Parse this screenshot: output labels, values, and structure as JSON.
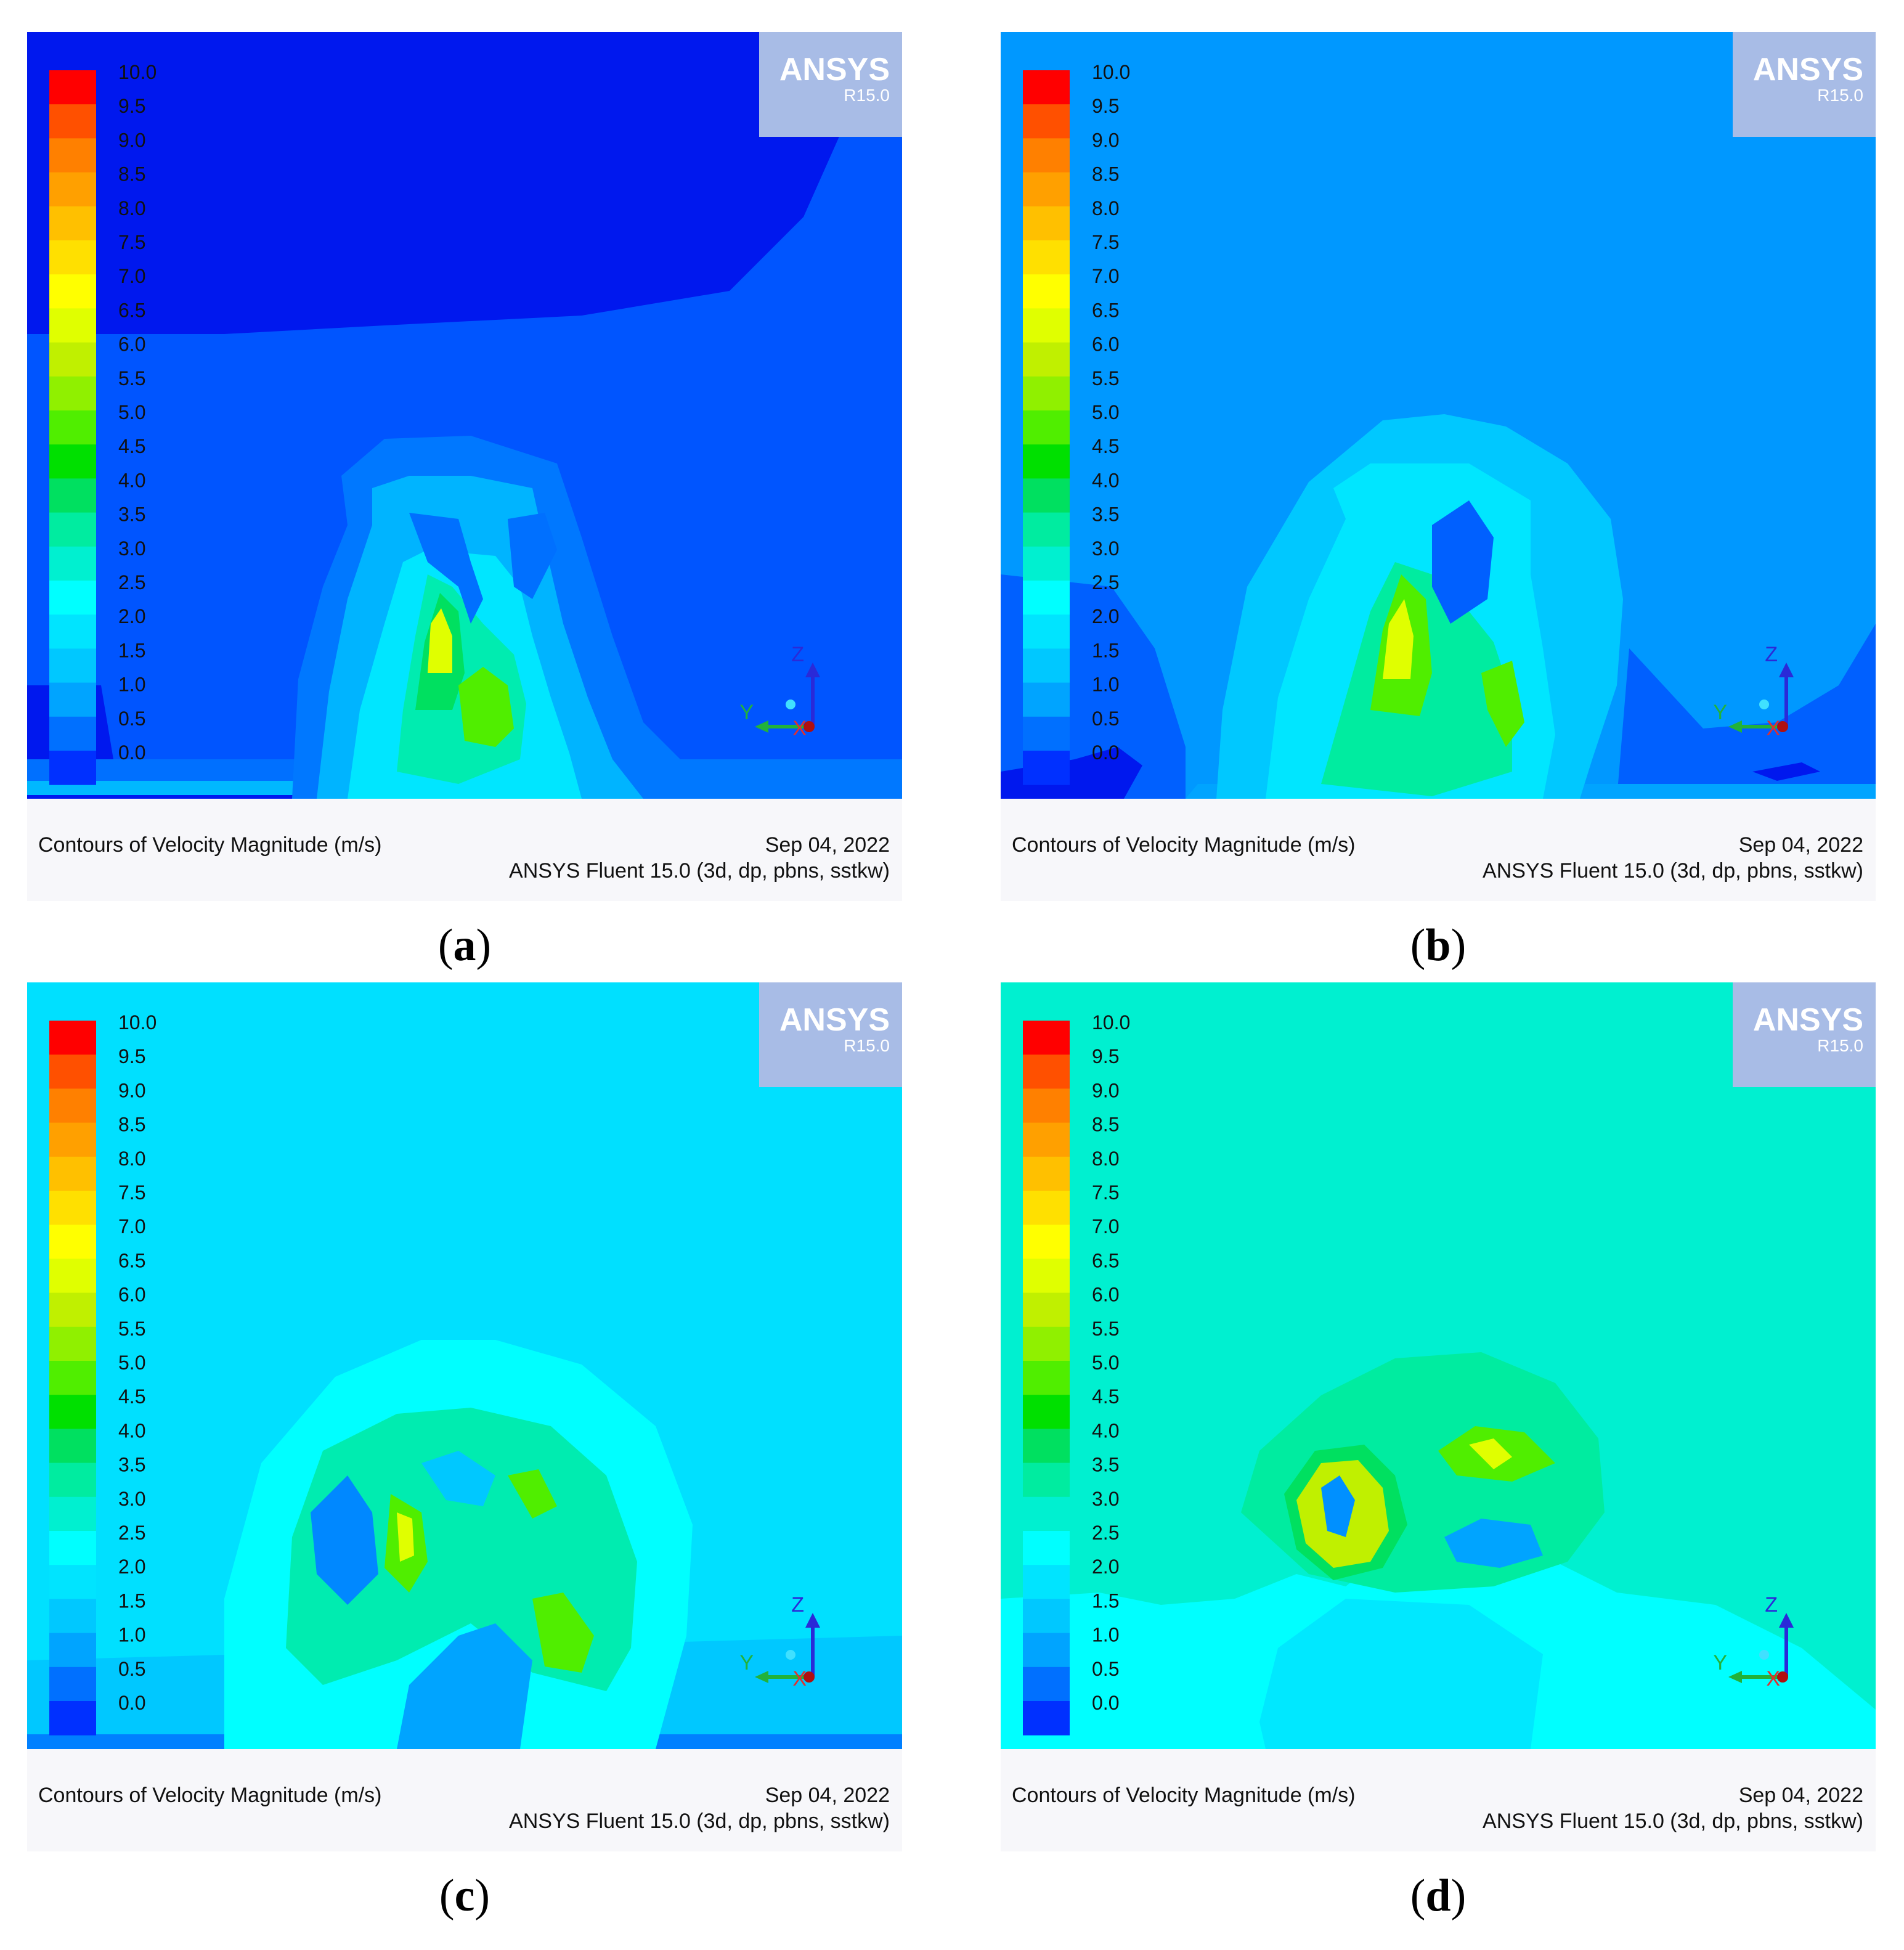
{
  "colorbar": {
    "ticks": [
      "10.0",
      "9.5",
      "9.0",
      "8.5",
      "8.0",
      "7.5",
      "7.0",
      "6.5",
      "6.0",
      "5.5",
      "5.0",
      "4.5",
      "4.0",
      "3.5",
      "3.0",
      "2.5",
      "2.0",
      "1.5",
      "1.0",
      "0.5",
      "0.0"
    ],
    "colors": [
      "#ff0000",
      "#ff5000",
      "#ff8000",
      "#ffa000",
      "#ffc000",
      "#ffe000",
      "#ffff00",
      "#e0ff00",
      "#c0f000",
      "#90f000",
      "#50ee00",
      "#00e000",
      "#00e060",
      "#00eca0",
      "#00f0d0",
      "#00ffff",
      "#00e4ff",
      "#00c8ff",
      "#00a4ff",
      "#0070ff",
      "#0030ff"
    ]
  },
  "logo": {
    "name": "ANSYS",
    "version": "R15.0"
  },
  "axes": {
    "z": "Z",
    "y": "Y",
    "x": "X"
  },
  "panels": [
    {
      "label": "a",
      "caption": "Contours of Velocity Magnitude (m/s)",
      "date": "Sep 04, 2022",
      "solver": "ANSYS Fluent 15.0 (3d, dp, pbns, sstkw)",
      "background_color": "#0055ff"
    },
    {
      "label": "b",
      "caption": "Contours of Velocity Magnitude (m/s)",
      "date": "Sep 04, 2022",
      "solver": "ANSYS Fluent 15.0 (3d, dp, pbns, sstkw)",
      "background_color": "#0098ff"
    },
    {
      "label": "c",
      "caption": "Contours of Velocity Magnitude (m/s)",
      "date": "Sep 04, 2022",
      "solver": "ANSYS Fluent 15.0 (3d, dp, pbns, sstkw)",
      "background_color": "#00e0ff"
    },
    {
      "label": "d",
      "caption": "Contours of Velocity Magnitude (m/s)",
      "date": "Sep 04, 2022",
      "solver": "ANSYS Fluent 15.0 (3d, dp, pbns, sstkw)",
      "background_color": "#00f0d0"
    }
  ]
}
